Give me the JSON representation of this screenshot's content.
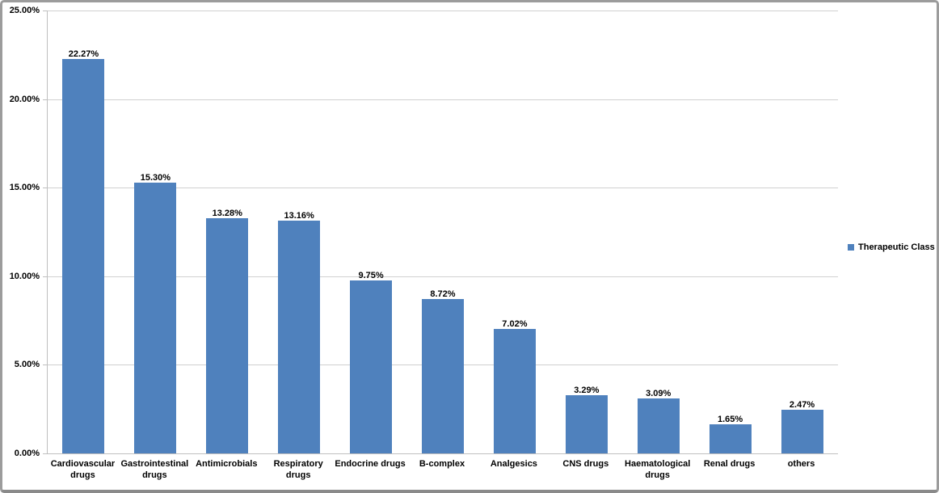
{
  "window": {
    "background": "#ffffff",
    "frame_border_color": "#9c9c9c"
  },
  "chart_data": {
    "type": "bar",
    "title": "",
    "xlabel": "",
    "ylabel": "",
    "categories": [
      "Cardiovascular\ndrugs",
      "Gastrointestinal\ndrugs",
      "Antimicrobials",
      "Respiratory drugs",
      "Endocrine drugs",
      "B-complex",
      "Analgesics",
      "CNS drugs",
      "Haematological\ndrugs",
      "Renal drugs",
      "others"
    ],
    "values": [
      22.27,
      15.3,
      13.28,
      13.16,
      9.75,
      8.72,
      7.02,
      3.29,
      3.09,
      1.65,
      2.47
    ],
    "value_labels": [
      "22.27%",
      "15.30%",
      "13.28%",
      "13.16%",
      "9.75%",
      "8.72%",
      "7.02%",
      "3.29%",
      "3.09%",
      "1.65%",
      "2.47%"
    ],
    "ylim": [
      0,
      25
    ],
    "y_ticks": [
      {
        "label": "0.00%",
        "value": 0
      },
      {
        "label": "5.00%",
        "value": 5
      },
      {
        "label": "10.00%",
        "value": 10
      },
      {
        "label": "15.00%",
        "value": 15
      },
      {
        "label": "20.00%",
        "value": 20
      },
      {
        "label": "25.00%",
        "value": 25
      }
    ],
    "grid": true,
    "legend_label": "Therapeutic Class",
    "legend_position": "right",
    "bar_color": "#4f81bd",
    "gridline_color": "#d0d0d0",
    "axis_color": "#bfbfbf",
    "label_text_color": "#000000"
  }
}
